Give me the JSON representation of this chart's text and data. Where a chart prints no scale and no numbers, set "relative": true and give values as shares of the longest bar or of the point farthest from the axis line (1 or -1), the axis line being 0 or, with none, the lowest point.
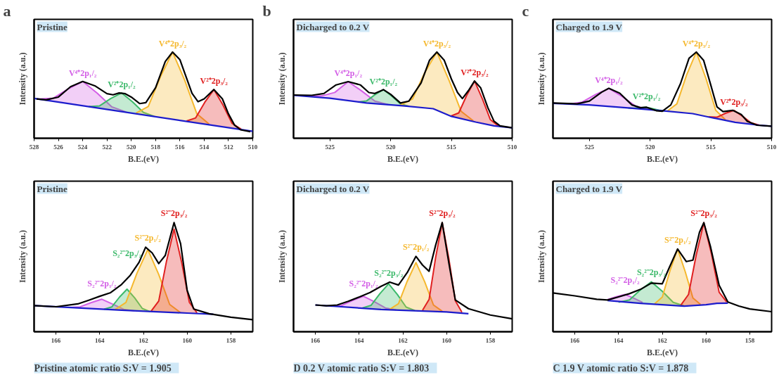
{
  "chart_data": [
    {
      "type": "line",
      "title": "Pristine",
      "xlabel": "B.E.(eV)",
      "ylabel": "Intensity (a.u.)",
      "relative": true,
      "xlim": [
        528,
        510
      ],
      "xticks": [
        528,
        526,
        524,
        522,
        520,
        518,
        516,
        514,
        512,
        510
      ],
      "annotations": [
        "a"
      ],
      "series": [
        {
          "name": "V⁴⁺2p₁/₂",
          "type": "area",
          "color": "#d35fe6",
          "x": [
            527.6,
            526.4,
            525.2,
            524,
            522.8,
            521.6,
            520.4
          ],
          "values": [
            0.456,
            0.466,
            0.573,
            0.659,
            0.522,
            0.364,
            0.303
          ]
        },
        {
          "name": "V²⁺2p₁/₂",
          "type": "area",
          "color": "#3cb96a",
          "x": [
            523.5,
            522.6,
            521.7,
            520.8,
            519.9,
            519,
            518.1
          ],
          "values": [
            0.368,
            0.376,
            0.46,
            0.526,
            0.422,
            0.3,
            0.254
          ]
        },
        {
          "name": "V⁴⁺2p₃/₂",
          "type": "area",
          "color": "#f5b82e",
          "x": [
            519.6,
            518.6,
            517.6,
            516.6,
            515.6,
            514.6,
            513.6
          ],
          "values": [
            0.293,
            0.368,
            0.714,
            1.0,
            0.672,
            0.283,
            0.165
          ]
        },
        {
          "name": "V²⁺2p₃/₂",
          "type": "area",
          "color": "#e02020",
          "x": [
            515.45,
            514.7,
            513.95,
            513.2,
            512.45,
            511.7,
            510.95
          ],
          "values": [
            0.2,
            0.236,
            0.417,
            0.565,
            0.385,
            0.172,
            0.105
          ]
        },
        {
          "color": "#1c1ccc",
          "x": [
            528,
            510
          ],
          "values": [
            0.462,
            0.08
          ]
        },
        {
          "color": "#000000",
          "x": [
            527.8,
            527,
            526,
            525,
            524,
            523,
            522,
            521.5,
            521,
            520.5,
            520,
            519.3,
            518.8,
            518,
            517.2,
            516.6,
            516,
            515.5,
            515,
            514.5,
            514,
            513.2,
            512.5,
            512,
            511.5,
            511,
            510.2
          ],
          "values": [
            0.457,
            0.446,
            0.478,
            0.598,
            0.659,
            0.609,
            0.517,
            0.504,
            0.526,
            0.517,
            0.478,
            0.402,
            0.413,
            0.587,
            0.891,
            1.0,
            0.913,
            0.717,
            0.522,
            0.424,
            0.457,
            0.565,
            0.457,
            0.283,
            0.152,
            0.098,
            0.076
          ]
        }
      ]
    },
    {
      "type": "line",
      "title": "Dicharged to 0.2 V",
      "xlabel": "B.E.(eV)",
      "ylabel": "Intensity (a.u.)",
      "relative": true,
      "xlim": [
        528,
        510
      ],
      "xticks": [
        525,
        520,
        515,
        510
      ],
      "annotations": [
        "b"
      ],
      "series": [
        {
          "name": "V⁴⁺2p₁/₂",
          "type": "area",
          "color": "#d35fe6",
          "x": [
            526.8,
            525.7,
            524.6,
            523.5,
            522.4,
            521.3,
            520.2
          ],
          "values": [
            0.487,
            0.491,
            0.532,
            0.657,
            0.55,
            0.431,
            0.391
          ]
        },
        {
          "name": "V²⁺2p₁/₂",
          "type": "area",
          "color": "#3cb96a",
          "x": [
            522.7,
            522,
            521.3,
            520.6,
            519.9,
            519.2,
            518.5
          ],
          "values": [
            0.42,
            0.432,
            0.505,
            0.564,
            0.488,
            0.399,
            0.371
          ]
        },
        {
          "name": "V⁴⁺2p₃/₂",
          "type": "area",
          "color": "#f5b82e",
          "x": [
            519.2,
            518.2,
            517.2,
            516.2,
            515.2,
            514.2,
            513.2
          ],
          "values": [
            0.385,
            0.456,
            0.762,
            1.0,
            0.673,
            0.312,
            0.202
          ]
        },
        {
          "name": "V²⁺2p₃/₂",
          "type": "area",
          "color": "#e02020",
          "x": [
            515.05,
            514.4,
            513.75,
            513.1,
            512.45,
            511.8,
            511.15
          ],
          "values": [
            0.257,
            0.294,
            0.496,
            0.664,
            0.457,
            0.217,
            0.144
          ]
        },
        {
          "color": "#1c1ccc",
          "x": [
            528,
            525,
            522,
            519,
            516.5,
            515,
            513,
            511.5,
            510
          ],
          "values": [
            0.498,
            0.465,
            0.409,
            0.376,
            0.343,
            0.254,
            0.188,
            0.144,
            0.122
          ]
        },
        {
          "color": "#000000",
          "x": [
            528,
            526.5,
            525.5,
            524.5,
            523.5,
            522.5,
            521.8,
            521.3,
            520.6,
            520,
            519.2,
            518.5,
            517.5,
            516.8,
            516.2,
            515.6,
            515,
            514.5,
            514.1,
            513.6,
            513.1,
            512.6,
            512,
            511.5,
            511,
            510
          ],
          "values": [
            0.502,
            0.498,
            0.52,
            0.619,
            0.657,
            0.619,
            0.531,
            0.52,
            0.564,
            0.509,
            0.409,
            0.431,
            0.642,
            0.907,
            1.0,
            0.907,
            0.686,
            0.531,
            0.46,
            0.553,
            0.664,
            0.586,
            0.354,
            0.199,
            0.144,
            0.122
          ]
        }
      ]
    },
    {
      "type": "line",
      "title": "Charged to 1.9 V",
      "xlabel": "B.E.(eV)",
      "ylabel": "Intensity (a.u.)",
      "relative": true,
      "xlim": [
        528,
        510
      ],
      "xticks": [
        525,
        520,
        515,
        510
      ],
      "annotations": [
        "c"
      ],
      "series": [
        {
          "name": "V⁴⁺2p₁/₂",
          "type": "area",
          "color": "#d35fe6",
          "x": [
            526.7,
            525.6,
            524.5,
            523.4,
            522.3,
            521.2,
            520.1
          ],
          "values": [
            0.396,
            0.419,
            0.508,
            0.579,
            0.484,
            0.374,
            0.334
          ]
        },
        {
          "name": "V²⁺2p₁/₂",
          "type": "area",
          "color": "#3cb96a",
          "x": [
            521.8,
            521.3,
            520.8,
            520.3,
            519.8,
            519.3,
            518.8
          ],
          "values": [
            0.352,
            0.349,
            0.356,
            0.36,
            0.344,
            0.326,
            0.318
          ]
        },
        {
          "name": "V⁴⁺2p₃/₂",
          "type": "area",
          "color": "#f5b82e",
          "x": [
            518.6,
            517.8,
            517,
            516.2,
            515.4,
            514.6,
            513.8
          ],
          "values": [
            0.314,
            0.399,
            0.734,
            1.0,
            0.692,
            0.325,
            0.215
          ]
        },
        {
          "name": "V²⁺2p₃/₂",
          "type": "area",
          "color": "#e02020",
          "x": [
            515.2,
            514.5,
            513.8,
            513.1,
            512.4,
            511.7,
            511
          ],
          "values": [
            0.249,
            0.244,
            0.29,
            0.324,
            0.256,
            0.18,
            0.152
          ]
        },
        {
          "color": "#1c1ccc",
          "x": [
            528,
            525,
            522,
            519,
            516.5,
            515,
            513,
            511,
            510
          ],
          "values": [
            0.405,
            0.387,
            0.354,
            0.32,
            0.286,
            0.241,
            0.185,
            0.151,
            0.14
          ]
        },
        {
          "color": "#000000",
          "x": [
            528,
            526,
            525,
            524,
            523.4,
            522.5,
            521.5,
            520.8,
            520.3,
            519.5,
            519,
            518.3,
            517.5,
            516.8,
            516.2,
            515.6,
            515,
            514.5,
            514,
            513.2,
            512.5,
            512,
            511.2,
            510
          ],
          "values": [
            0.41,
            0.399,
            0.432,
            0.534,
            0.579,
            0.523,
            0.387,
            0.354,
            0.36,
            0.32,
            0.313,
            0.387,
            0.635,
            0.928,
            1.0,
            0.905,
            0.613,
            0.365,
            0.309,
            0.324,
            0.275,
            0.196,
            0.151,
            0.14
          ]
        }
      ]
    },
    {
      "type": "line",
      "title": "Pristine",
      "xlabel": "B.E.(eV)",
      "ylabel": "Intensity (a.u.)",
      "relative": true,
      "xlim": [
        167,
        157
      ],
      "xticks": [
        166,
        164,
        162,
        160,
        158
      ],
      "annotations": [
        "Pristine    atomic ratio S:V = 1.905"
      ],
      "series": [
        {
          "name": "S₂²⁻2p₁/₂",
          "type": "area",
          "color": "#d35fe6",
          "x": [
            165.4,
            164.9,
            164.4,
            163.9,
            163.4,
            162.9,
            162.4
          ],
          "values": [
            0.222,
            0.228,
            0.266,
            0.298,
            0.252,
            0.205,
            0.191
          ]
        },
        {
          "name": "S₂²⁻2p₃/₂",
          "type": "area",
          "color": "#3cb96a",
          "x": [
            163.8,
            163.45,
            163.1,
            162.75,
            162.4,
            162.05,
            161.7
          ],
          "values": [
            0.206,
            0.227,
            0.316,
            0.39,
            0.31,
            0.213,
            0.185
          ]
        },
        {
          "name": "S²⁻2p₁/₂",
          "type": "area",
          "color": "#f5b82e",
          "x": [
            163.3,
            162.8,
            162.3,
            161.8,
            161.3,
            160.8,
            160.3
          ],
          "values": [
            0.202,
            0.268,
            0.534,
            0.754,
            0.525,
            0.25,
            0.174
          ]
        },
        {
          "name": "S²⁻2p₃/₂",
          "type": "area",
          "color": "#e02020",
          "x": [
            161.65,
            161.3,
            160.95,
            160.6,
            160.25,
            159.9,
            159.55
          ],
          "values": [
            0.188,
            0.281,
            0.641,
            0.94,
            0.635,
            0.27,
            0.173
          ]
        },
        {
          "color": "#1c1ccc",
          "x": [
            167,
            163,
            160,
            158.8
          ],
          "values": [
            0.24,
            0.197,
            0.171,
            0.161
          ]
        },
        {
          "color": "#000000",
          "x": [
            167,
            166,
            165,
            164.5,
            164,
            163.5,
            163,
            162.6,
            162.2,
            161.9,
            161.6,
            161.3,
            161,
            160.6,
            160.3,
            160,
            159.7,
            159,
            158,
            157
          ],
          "values": [
            0.24,
            0.229,
            0.255,
            0.289,
            0.325,
            0.358,
            0.433,
            0.518,
            0.636,
            0.775,
            0.722,
            0.625,
            0.7,
            1.0,
            0.807,
            0.379,
            0.208,
            0.165,
            0.133,
            0.111
          ]
        }
      ]
    },
    {
      "type": "line",
      "title": "Dicharged to 0.2 V",
      "xlabel": "B.E.(eV)",
      "ylabel": "Intensity (a.u.)",
      "relative": true,
      "xlim": [
        167,
        157
      ],
      "xticks": [
        166,
        164,
        162,
        160,
        158
      ],
      "annotations": [
        "D 0.2 V    atomic ratio S:V = 1.803"
      ],
      "series": [
        {
          "name": "S₂²⁻2p₁/₂",
          "type": "area",
          "color": "#d35fe6",
          "x": [
            165.3,
            164.8,
            164.3,
            163.8,
            163.3,
            162.8,
            162.3
          ],
          "values": [
            0.233,
            0.241,
            0.287,
            0.325,
            0.275,
            0.218,
            0.2
          ]
        },
        {
          "name": "S₂²⁻2p₃/₂",
          "type": "area",
          "color": "#3cb96a",
          "x": [
            163.85,
            163.45,
            163.05,
            162.65,
            162.25,
            161.85,
            161.45
          ],
          "values": [
            0.218,
            0.242,
            0.349,
            0.439,
            0.341,
            0.226,
            0.194
          ]
        },
        {
          "name": "S²⁻2p₁/₂",
          "type": "area",
          "color": "#f5b82e",
          "x": [
            162.6,
            162.2,
            161.8,
            161.4,
            161,
            160.6,
            160.2
          ],
          "values": [
            0.205,
            0.257,
            0.463,
            0.634,
            0.457,
            0.245,
            0.188
          ]
        },
        {
          "name": "S²⁻2p₃/₂",
          "type": "area",
          "color": "#e02020",
          "x": [
            161.1,
            160.8,
            160.5,
            160.2,
            159.9,
            159.6,
            159.3
          ],
          "values": [
            0.197,
            0.296,
            0.681,
            1.0,
            0.674,
            0.284,
            0.179
          ]
        },
        {
          "color": "#1c1ccc",
          "x": [
            166,
            163,
            160,
            159
          ],
          "values": [
            0.245,
            0.204,
            0.181,
            0.165
          ]
        },
        {
          "color": "#000000",
          "x": [
            166,
            165.5,
            165,
            164.5,
            164,
            163.5,
            163,
            162.6,
            162.2,
            161.8,
            161.4,
            161.1,
            160.8,
            160.5,
            160.2,
            159.9,
            159.6,
            159,
            158,
            157
          ],
          "values": [
            0.245,
            0.238,
            0.245,
            0.279,
            0.318,
            0.359,
            0.416,
            0.455,
            0.428,
            0.542,
            0.691,
            0.611,
            0.554,
            0.794,
            1.0,
            0.634,
            0.291,
            0.211,
            0.153,
            0.119
          ]
        }
      ]
    },
    {
      "type": "line",
      "title": "Charged to 1.9 V",
      "xlabel": "B.E.(eV)",
      "ylabel": "Intensity (a.u.)",
      "relative": true,
      "xlim": [
        167,
        157
      ],
      "xticks": [
        166,
        164,
        162,
        160,
        158
      ],
      "annotations": [
        "C 1.9 V    atomic ratio S:V = 1.878"
      ],
      "series": [
        {
          "name": "S₂²⁻2p₁/₂",
          "type": "area",
          "color": "#d35fe6",
          "x": [
            164.5,
            164.1,
            163.7,
            163.3,
            162.9
          ],
          "values": [
            0.295,
            0.321,
            0.342,
            0.307,
            0.268
          ]
        },
        {
          "name": "S₂²⁻2p₃/₂",
          "type": "area",
          "color": "#3cb96a",
          "x": [
            164,
            163.5,
            163,
            162.5,
            162,
            161.5,
            161
          ],
          "values": [
            0.27,
            0.292,
            0.384,
            0.457,
            0.371,
            0.269,
            0.237
          ]
        },
        {
          "name": "S²⁻2p₁/₂",
          "type": "area",
          "color": "#f5b82e",
          "x": [
            162.35,
            162,
            161.65,
            161.3,
            160.95,
            160.6,
            160.25
          ],
          "values": [
            0.257,
            0.317,
            0.558,
            0.758,
            0.55,
            0.31,
            0.25
          ]
        },
        {
          "name": "S²⁻2p₃/₂",
          "type": "area",
          "color": "#e02020",
          "x": [
            161.15,
            160.8,
            160.45,
            160.1,
            159.75,
            159.4,
            159.05
          ],
          "values": [
            0.244,
            0.342,
            0.701,
            1.0,
            0.713,
            0.362,
            0.271
          ]
        },
        {
          "color": "#1c1ccc",
          "x": [
            164.5,
            163,
            162,
            161,
            160,
            159.5,
            159
          ],
          "values": [
            0.286,
            0.26,
            0.247,
            0.235,
            0.247,
            0.26,
            0.262
          ]
        },
        {
          "color": "#000000",
          "x": [
            167,
            166,
            165,
            164.5,
            164,
            163.5,
            163,
            162.5,
            162,
            161.7,
            161.3,
            160.9,
            160.6,
            160.3,
            160.1,
            159.8,
            159.4,
            159,
            158.5,
            158,
            157
          ],
          "values": [
            0.355,
            0.329,
            0.298,
            0.291,
            0.319,
            0.349,
            0.388,
            0.446,
            0.439,
            0.579,
            0.758,
            0.643,
            0.656,
            0.911,
            1.0,
            0.783,
            0.426,
            0.273,
            0.235,
            0.209,
            0.184
          ]
        }
      ]
    }
  ]
}
